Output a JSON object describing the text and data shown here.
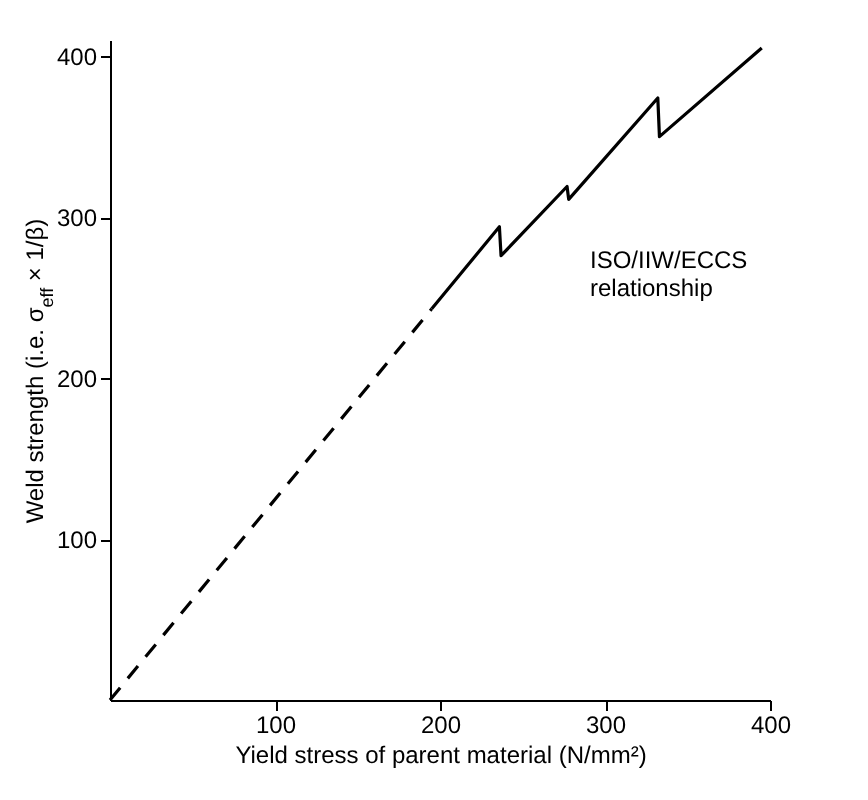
{
  "chart_data": {
    "type": "line",
    "xlabel": "Yield stress of parent material  (N/mm²)",
    "ylabel": "Weld strength (i.e. σ$_{eff}$ × 1/β)",
    "annotations": [
      "ISO/IIW/ECCS\nrelationship"
    ],
    "series": [
      {
        "color": "#000000",
        "line_style": "dashed",
        "x": [
          0,
          195
        ],
        "values": [
          0,
          243
        ]
      },
      {
        "color": "#000000",
        "line_style": "solid",
        "x": [
          195,
          236,
          237,
          277,
          278,
          332,
          333,
          395
        ],
        "values": [
          243,
          294,
          276,
          319,
          311,
          374,
          350,
          405
        ]
      }
    ],
    "xlim": [
      0,
      400
    ],
    "ylim": [
      0,
      410
    ],
    "xticks": [
      100,
      200,
      300,
      400
    ],
    "yticks": [
      100,
      200,
      300,
      400
    ],
    "grid": false,
    "marker": "none"
  }
}
